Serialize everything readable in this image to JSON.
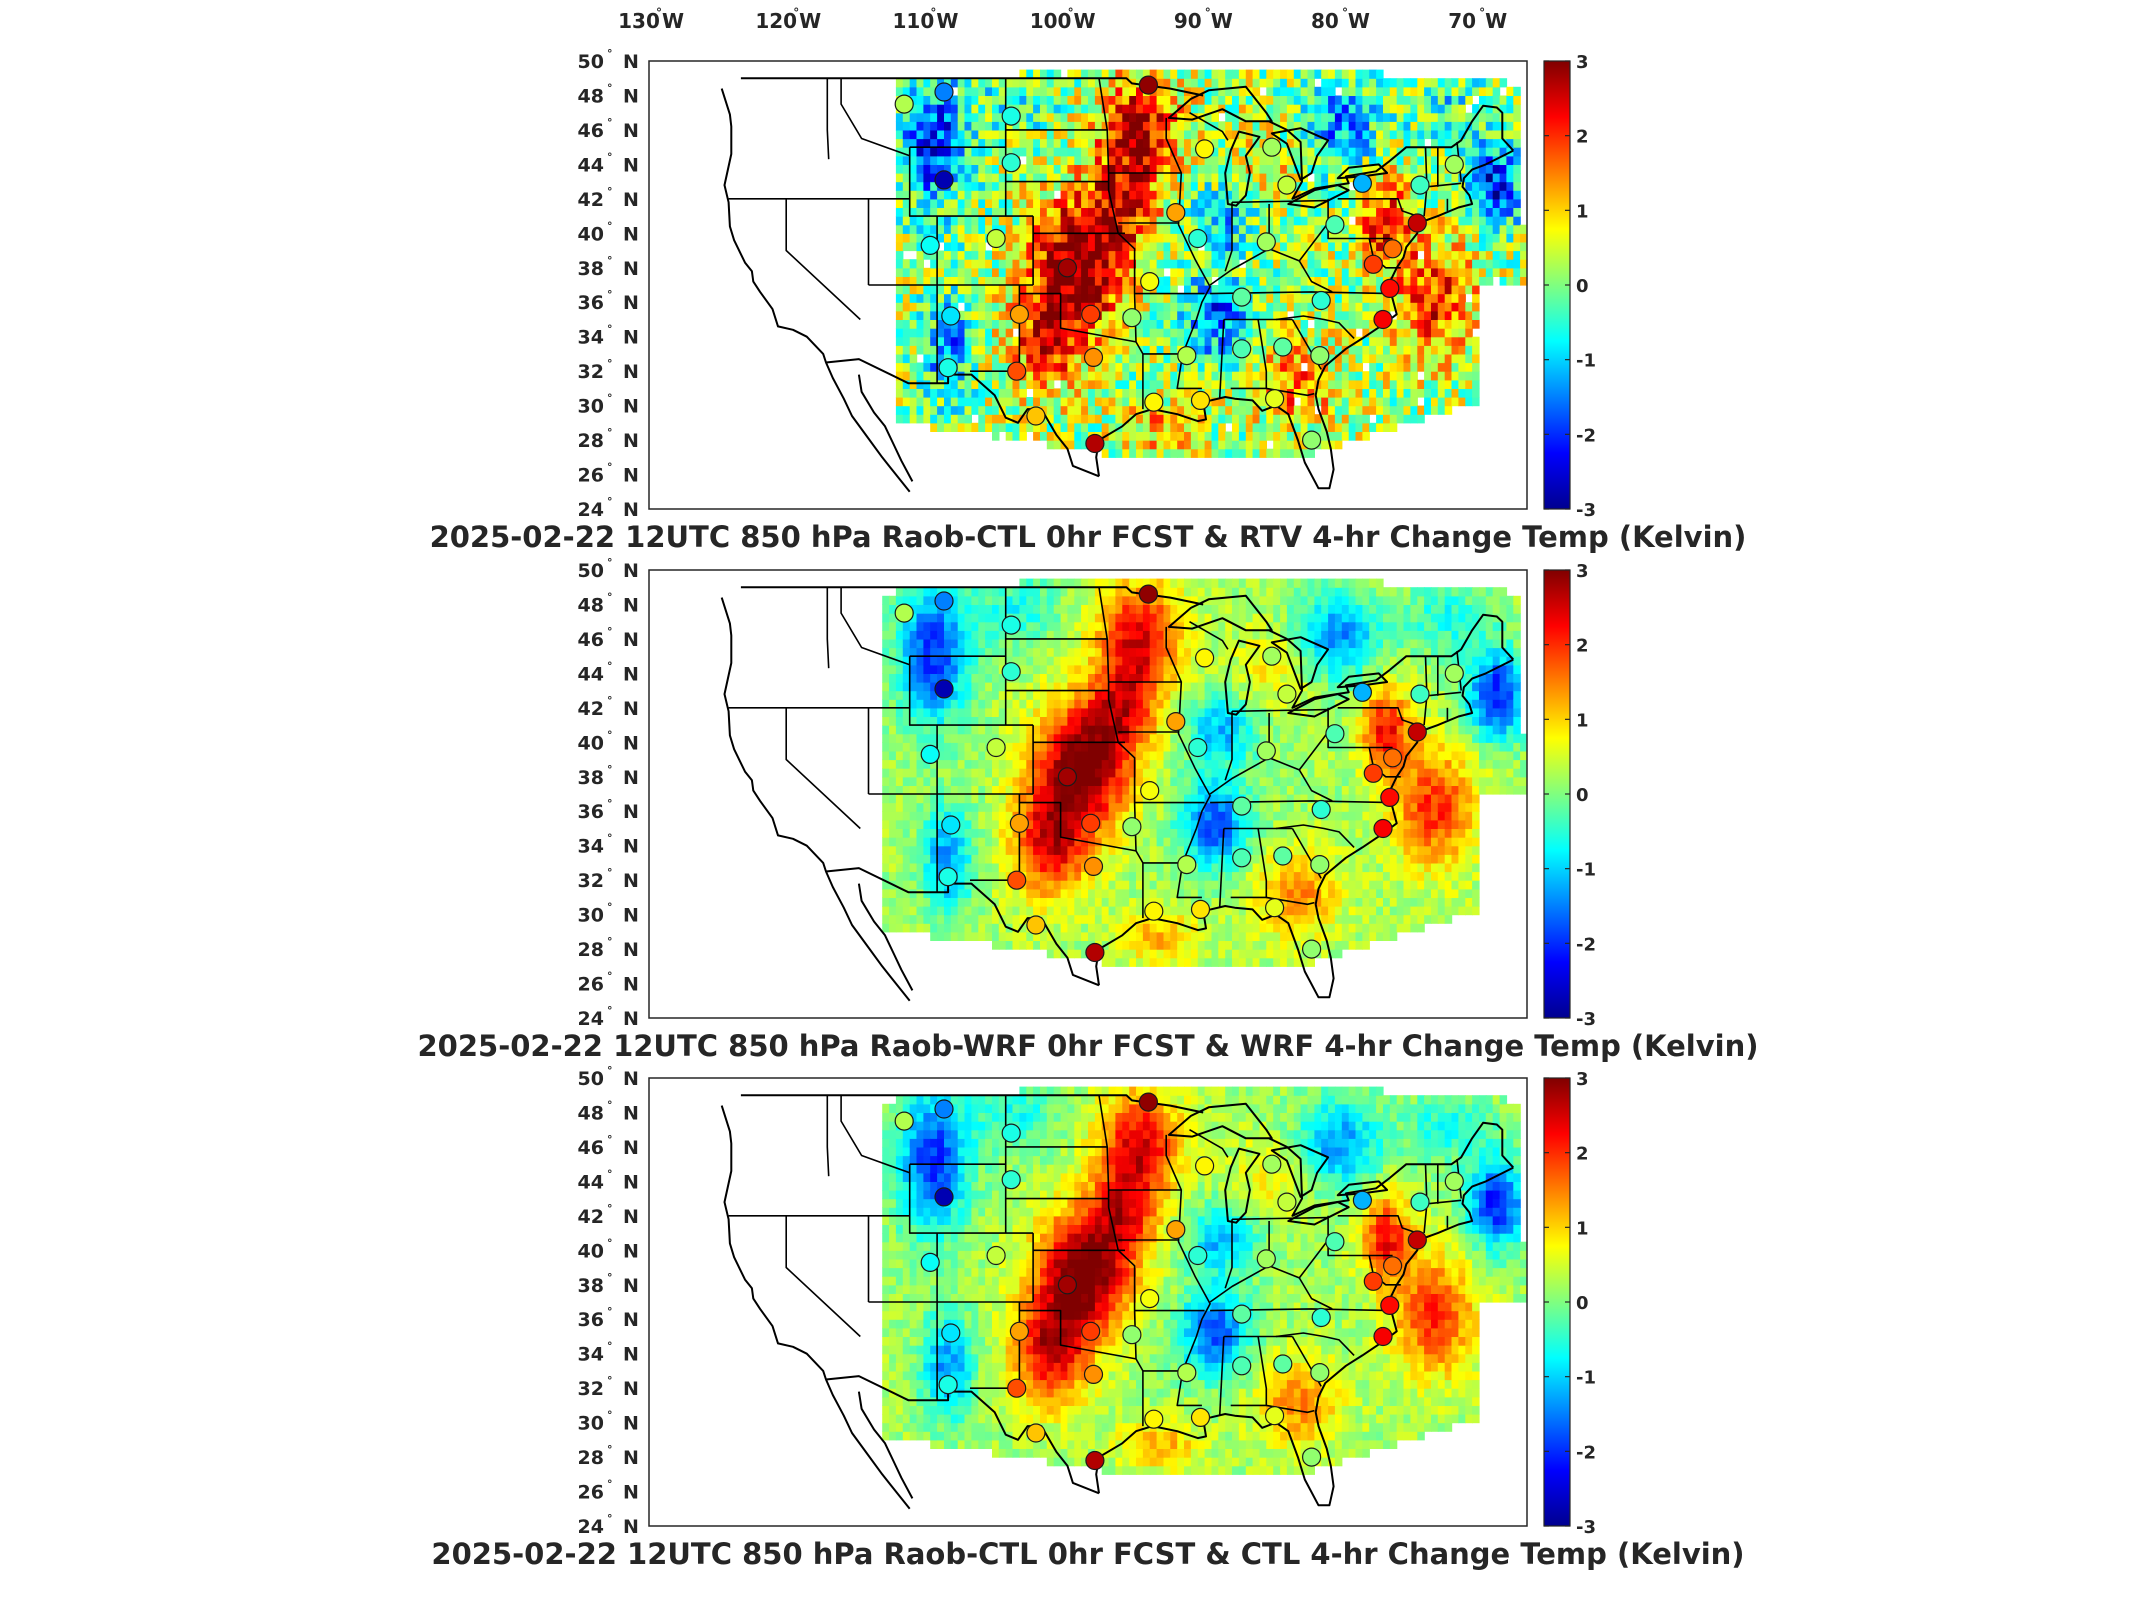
{
  "lon_labels": [
    {
      "deg": "130",
      "hemi": "W"
    },
    {
      "deg": "120",
      "hemi": "W"
    },
    {
      "deg": "110",
      "hemi": "W"
    },
    {
      "deg": "100",
      "hemi": "W"
    },
    {
      "deg": "90",
      "hemi": "W"
    },
    {
      "deg": "80",
      "hemi": "W"
    },
    {
      "deg": "70",
      "hemi": "W"
    }
  ],
  "lat_labels": [
    {
      "deg": "50",
      "hemi": "N"
    },
    {
      "deg": "48",
      "hemi": "N"
    },
    {
      "deg": "46",
      "hemi": "N"
    },
    {
      "deg": "44",
      "hemi": "N"
    },
    {
      "deg": "42",
      "hemi": "N"
    },
    {
      "deg": "40",
      "hemi": "N"
    },
    {
      "deg": "38",
      "hemi": "N"
    },
    {
      "deg": "36",
      "hemi": "N"
    },
    {
      "deg": "34",
      "hemi": "N"
    },
    {
      "deg": "32",
      "hemi": "N"
    },
    {
      "deg": "30",
      "hemi": "N"
    },
    {
      "deg": "28",
      "hemi": "N"
    },
    {
      "deg": "26",
      "hemi": "N"
    },
    {
      "deg": "24",
      "hemi": "N"
    }
  ],
  "colorbar": {
    "min": -3,
    "max": 3,
    "ticks": [
      "3",
      "2",
      "1",
      "0",
      "-1",
      "-2",
      "-3"
    ],
    "colormap": "jet"
  },
  "panels": [
    {
      "id": "rtv",
      "title": "2025-02-22 12UTC 850 hPa Raob-CTL 0hr FCST & RTV 4-hr Change Temp (Kelvin)",
      "field_west_lon": -112
    },
    {
      "id": "wrf",
      "title": "2025-02-22 12UTC 850 hPa Raob-WRF 0hr FCST & WRF 4-hr Change Temp (Kelvin)",
      "field_west_lon": -113
    },
    {
      "id": "ctl",
      "title": "2025-02-22 12UTC 850 hPa Raob-CTL 0hr FCST & CTL 4-hr Change Temp (Kelvin)",
      "field_west_lon": -113
    }
  ],
  "raob_stations": [
    {
      "lon": -111.4,
      "lat": 47.5,
      "value": 0.3
    },
    {
      "lon": -108.5,
      "lat": 48.2,
      "value": -1.5
    },
    {
      "lon": -103.6,
      "lat": 46.8,
      "value": -0.6
    },
    {
      "lon": -93.6,
      "lat": 48.6,
      "value": 2.9
    },
    {
      "lon": -108.5,
      "lat": 43.1,
      "value": -2.7
    },
    {
      "lon": -103.6,
      "lat": 44.1,
      "value": -0.5
    },
    {
      "lon": -89.5,
      "lat": 44.9,
      "value": 0.8
    },
    {
      "lon": -84.6,
      "lat": 45.0,
      "value": 0.2
    },
    {
      "lon": -83.5,
      "lat": 42.8,
      "value": 0.4
    },
    {
      "lon": -78.0,
      "lat": 42.9,
      "value": -1.2
    },
    {
      "lon": -73.8,
      "lat": 42.8,
      "value": -0.4
    },
    {
      "lon": -71.3,
      "lat": 44.0,
      "value": 0.2
    },
    {
      "lon": -91.6,
      "lat": 41.2,
      "value": 1.3
    },
    {
      "lon": -90.0,
      "lat": 39.7,
      "value": -0.5
    },
    {
      "lon": -85.0,
      "lat": 39.5,
      "value": 0.2
    },
    {
      "lon": -80.0,
      "lat": 40.5,
      "value": -0.3
    },
    {
      "lon": -75.8,
      "lat": 39.1,
      "value": 1.6
    },
    {
      "lon": -74.0,
      "lat": 40.6,
      "value": 2.6
    },
    {
      "lon": -77.2,
      "lat": 38.2,
      "value": 1.9
    },
    {
      "lon": -109.5,
      "lat": 39.3,
      "value": -0.7
    },
    {
      "lon": -104.7,
      "lat": 39.7,
      "value": 0.4
    },
    {
      "lon": -99.5,
      "lat": 38.0,
      "value": 2.8
    },
    {
      "lon": -93.5,
      "lat": 37.2,
      "value": 0.7
    },
    {
      "lon": -86.8,
      "lat": 36.3,
      "value": -0.2
    },
    {
      "lon": -81.0,
      "lat": 36.1,
      "value": -0.5
    },
    {
      "lon": -76.0,
      "lat": 36.8,
      "value": 2.2
    },
    {
      "lon": -76.5,
      "lat": 35.0,
      "value": 2.3
    },
    {
      "lon": -108.0,
      "lat": 35.2,
      "value": -0.9
    },
    {
      "lon": -103.0,
      "lat": 35.3,
      "value": 1.3
    },
    {
      "lon": -97.8,
      "lat": 35.3,
      "value": 1.9
    },
    {
      "lon": -94.8,
      "lat": 35.1,
      "value": 0.1
    },
    {
      "lon": -90.8,
      "lat": 32.9,
      "value": 0.3
    },
    {
      "lon": -86.8,
      "lat": 33.3,
      "value": -0.3
    },
    {
      "lon": -83.8,
      "lat": 33.4,
      "value": -0.2
    },
    {
      "lon": -81.1,
      "lat": 32.9,
      "value": 0.1
    },
    {
      "lon": -108.2,
      "lat": 32.2,
      "value": -0.6
    },
    {
      "lon": -103.2,
      "lat": 32.0,
      "value": 1.8
    },
    {
      "lon": -97.6,
      "lat": 32.8,
      "value": 1.4
    },
    {
      "lon": -101.8,
      "lat": 29.4,
      "value": 1.1
    },
    {
      "lon": -97.5,
      "lat": 27.8,
      "value": 2.7
    },
    {
      "lon": -93.2,
      "lat": 30.2,
      "value": 0.8
    },
    {
      "lon": -89.8,
      "lat": 30.3,
      "value": 0.9
    },
    {
      "lon": -84.4,
      "lat": 30.4,
      "value": 0.6
    },
    {
      "lon": -81.7,
      "lat": 28.0,
      "value": 0.1
    }
  ]
}
